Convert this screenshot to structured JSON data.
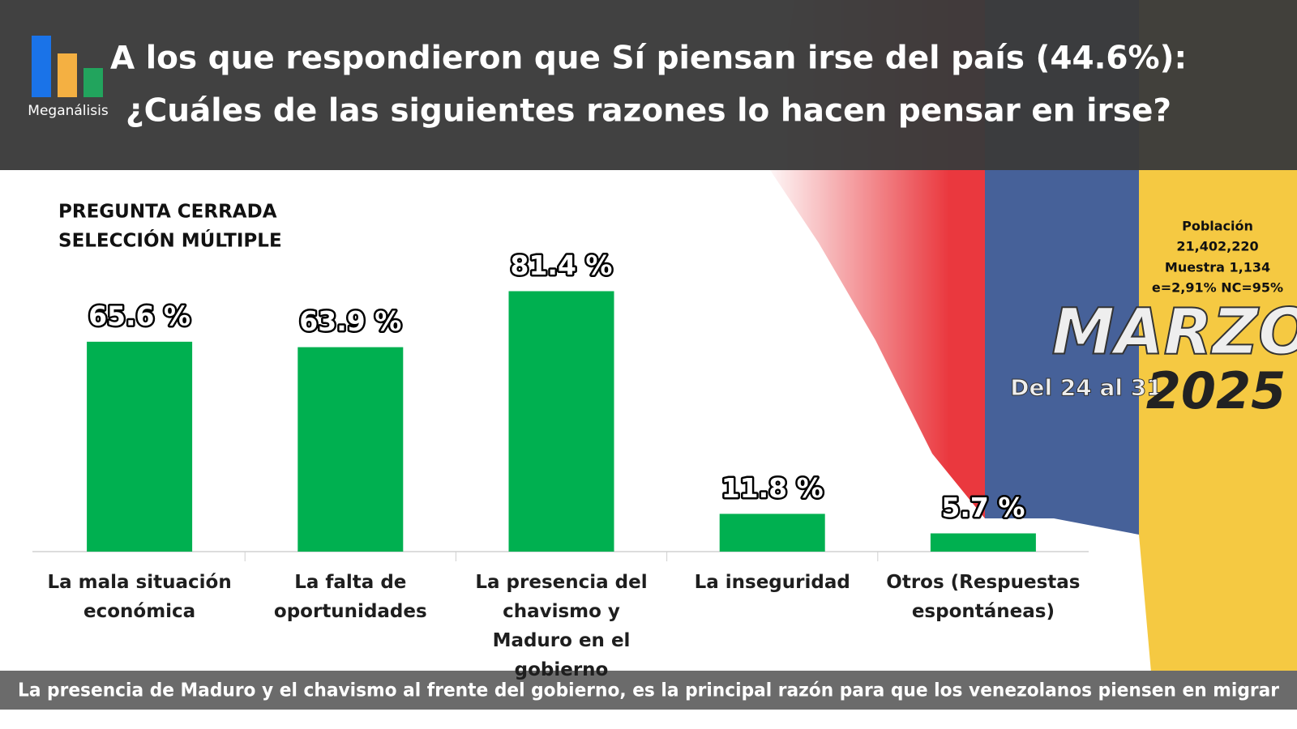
{
  "logo": "Meganálisis",
  "chart_data": {
    "type": "bar",
    "title": "A los que respondieron que Sí piensan irse del país (44.6%):",
    "subtitle": "¿Cuáles de las siguientes razones lo hacen pensar en irse?",
    "notes": [
      "PREGUNTA CERRADA",
      "SELECCIÓN MÚLTIPLE"
    ],
    "categories": [
      "La mala situación económica",
      "La falta de oportunidades",
      "La presencia del chavismo y Maduro en el gobierno",
      "La inseguridad",
      "Otros (Respuestas espontáneas)"
    ],
    "values": [
      65.6,
      63.9,
      81.4,
      11.8,
      5.7
    ],
    "value_labels": [
      "65.6 %",
      "63.9 %",
      "81.4 %",
      "11.8 %",
      "5.7 %"
    ],
    "color": "#00b050",
    "ylim": [
      0,
      100
    ]
  },
  "sample": [
    "Población",
    "21,402,220",
    "Muestra 1,134",
    "e=2,91%  NC=95%"
  ],
  "period": {
    "month": "MARZO",
    "days": "Del 24 al 31",
    "year": "2025"
  },
  "footer": "La presencia de Maduro y el chavismo al frente del gobierno, es la principal razón para que los venezolanos piensen en migrar"
}
